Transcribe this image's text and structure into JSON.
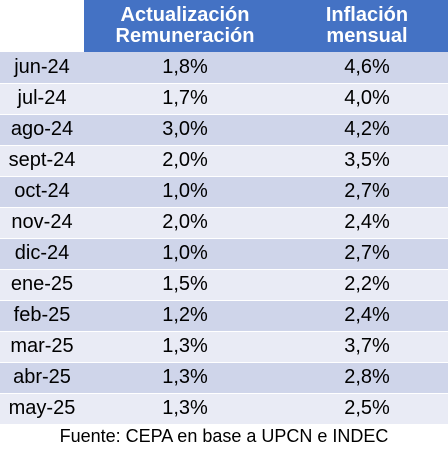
{
  "headers": {
    "col1_line1": "Actualización",
    "col1_line2": "Remuneración",
    "col2_line1": "Inflación",
    "col2_line2": "mensual"
  },
  "rows": [
    {
      "month": "jun-24",
      "remuneracion": "1,8%",
      "inflacion": "4,6%"
    },
    {
      "month": "jul-24",
      "remuneracion": "1,7%",
      "inflacion": "4,0%"
    },
    {
      "month": "ago-24",
      "remuneracion": "3,0%",
      "inflacion": "4,2%"
    },
    {
      "month": "sept-24",
      "remuneracion": "2,0%",
      "inflacion": "3,5%"
    },
    {
      "month": "oct-24",
      "remuneracion": "1,0%",
      "inflacion": "2,7%"
    },
    {
      "month": "nov-24",
      "remuneracion": "2,0%",
      "inflacion": "2,4%"
    },
    {
      "month": "dic-24",
      "remuneracion": "1,0%",
      "inflacion": "2,7%"
    },
    {
      "month": "ene-25",
      "remuneracion": "1,5%",
      "inflacion": "2,2%"
    },
    {
      "month": "feb-25",
      "remuneracion": "1,2%",
      "inflacion": "2,4%"
    },
    {
      "month": "mar-25",
      "remuneracion": "1,3%",
      "inflacion": "3,7%"
    },
    {
      "month": "abr-25",
      "remuneracion": "1,3%",
      "inflacion": "2,8%"
    },
    {
      "month": "may-25",
      "remuneracion": "1,3%",
      "inflacion": "2,5%"
    }
  ],
  "source": "Fuente: CEPA en base a UPCN e INDEC",
  "colors": {
    "header_bg": "#4472c4",
    "row_odd": "#cfd5ea",
    "row_even": "#e9ebf5"
  },
  "chart_data": {
    "type": "table",
    "columns": [
      "",
      "Actualización Remuneración",
      "Inflación mensual"
    ],
    "categories": [
      "jun-24",
      "jul-24",
      "ago-24",
      "sept-24",
      "oct-24",
      "nov-24",
      "dic-24",
      "ene-25",
      "feb-25",
      "mar-25",
      "abr-25",
      "may-25"
    ],
    "series": [
      {
        "name": "Actualización Remuneración",
        "values": [
          1.8,
          1.7,
          3.0,
          2.0,
          1.0,
          2.0,
          1.0,
          1.5,
          1.2,
          1.3,
          1.3,
          1.3
        ]
      },
      {
        "name": "Inflación mensual",
        "values": [
          4.6,
          4.0,
          4.2,
          3.5,
          2.7,
          2.4,
          2.7,
          2.2,
          2.4,
          3.7,
          2.8,
          2.5
        ]
      }
    ],
    "unit": "%"
  }
}
